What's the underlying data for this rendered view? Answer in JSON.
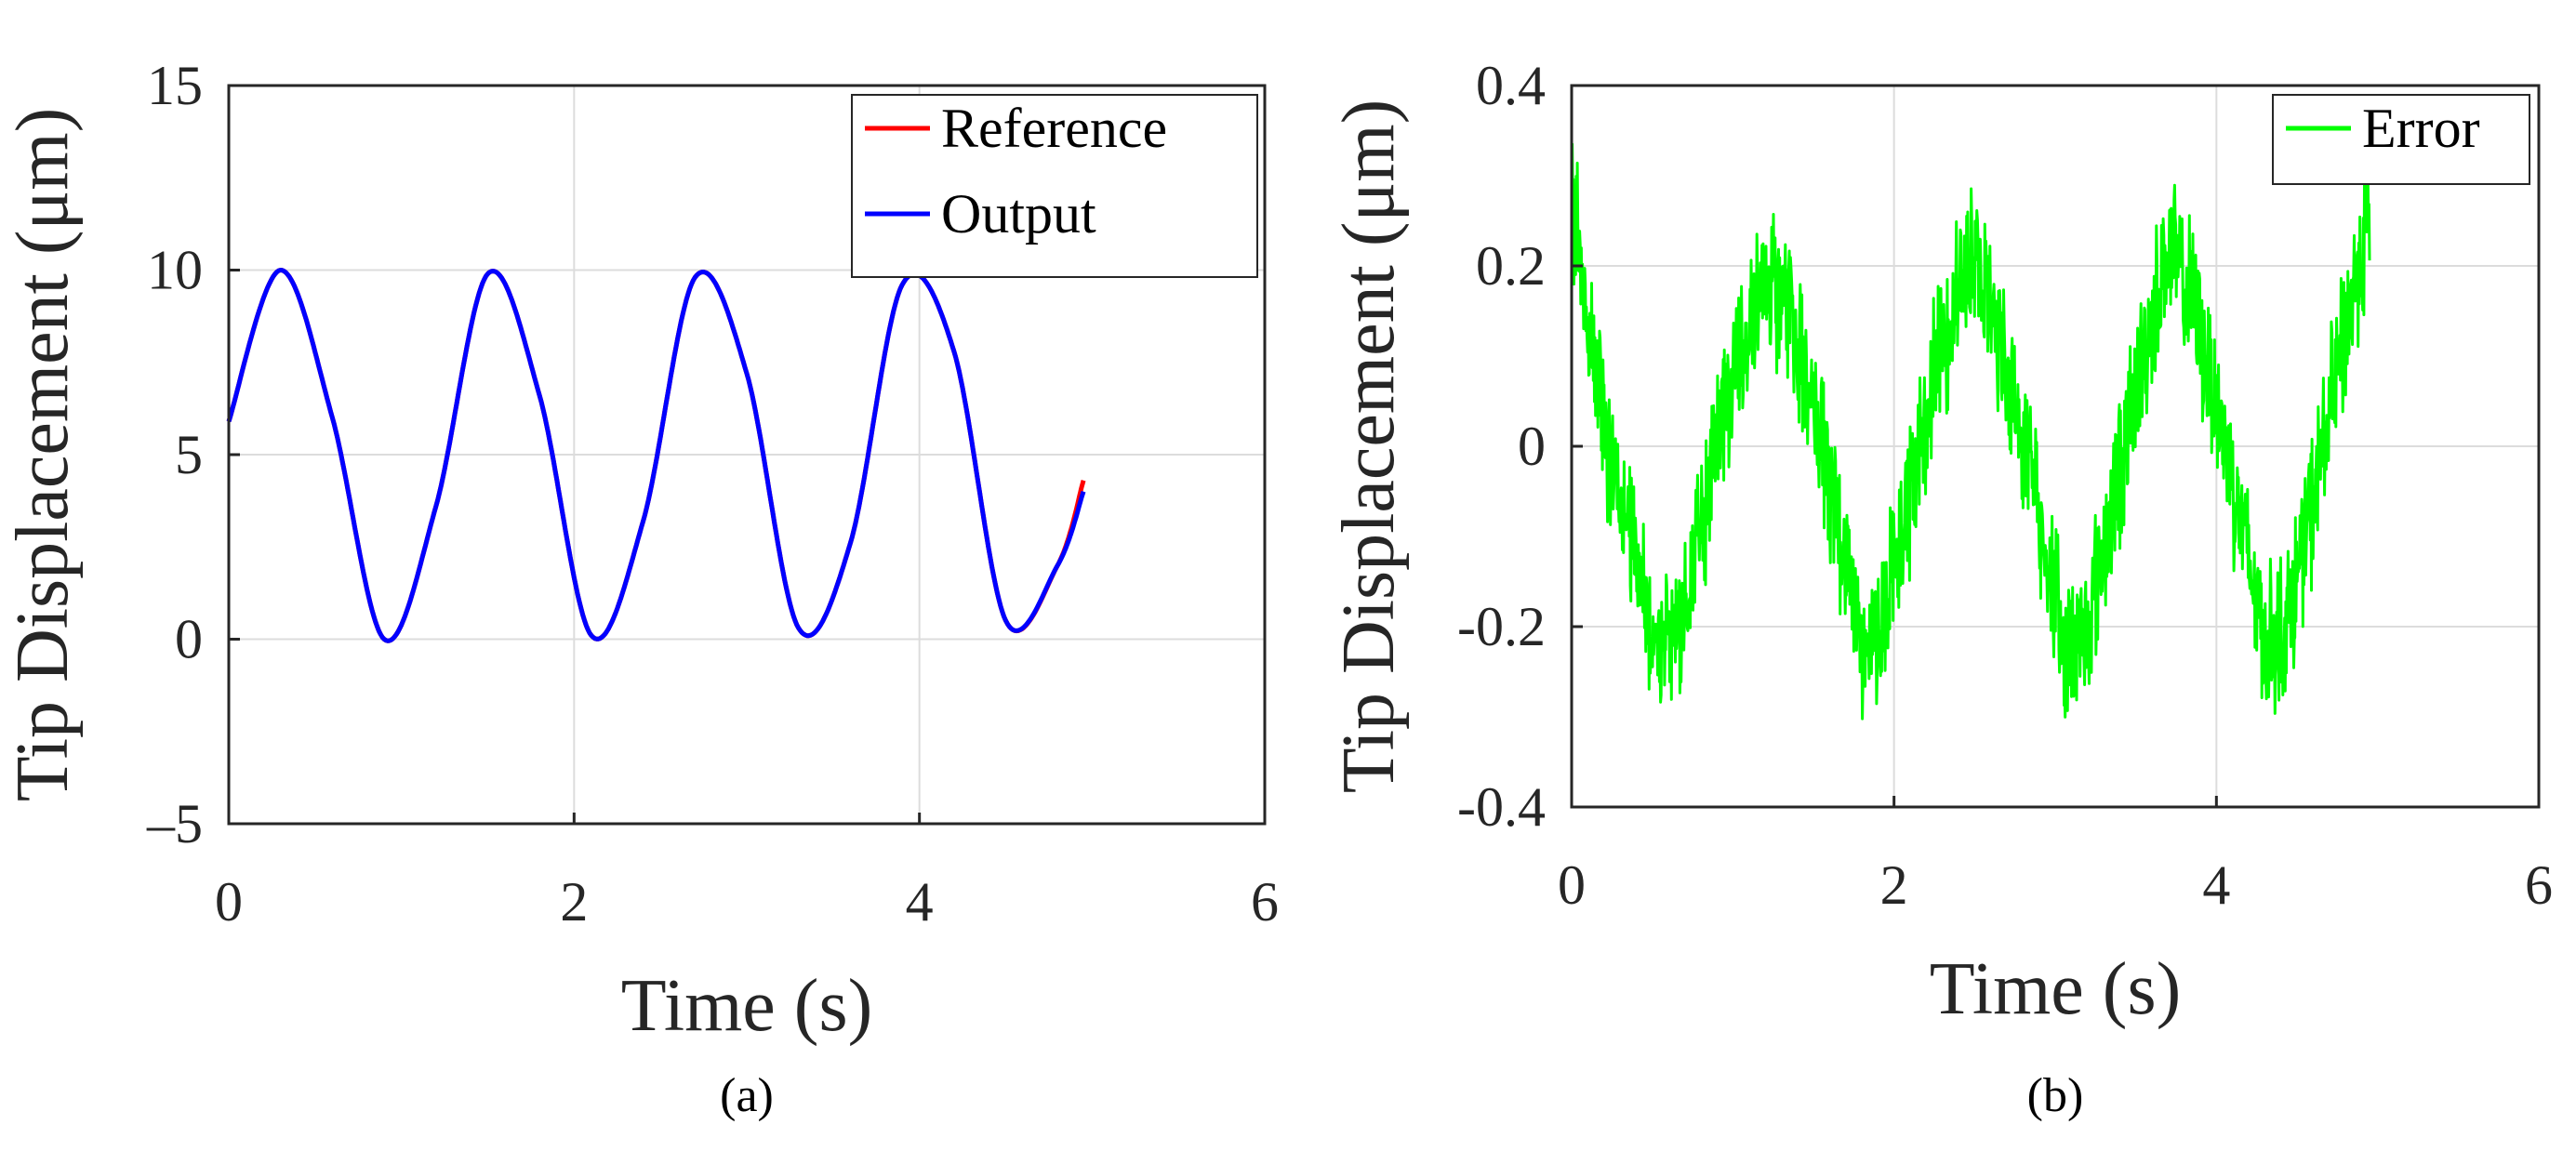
{
  "chart_data": [
    {
      "type": "line",
      "caption": "(a)",
      "xlabel": "Time (s)",
      "ylabel": "Tip Displacement (μm)",
      "xlim": [
        0,
        6
      ],
      "ylim": [
        -5,
        15
      ],
      "xticks": [
        0,
        2,
        4,
        6
      ],
      "xtick_labels": [
        "0",
        "2",
        "4",
        "6"
      ],
      "yticks": [
        -5,
        0,
        5,
        10,
        15
      ],
      "ytick_labels": [
        "–5",
        "0",
        "5",
        "10",
        "15"
      ],
      "grid": true,
      "legend_position": "top-right",
      "series": [
        {
          "name": "Reference",
          "color": "#ff0000",
          "x": [
            0,
            0.3,
            0.6,
            0.9,
            1.2,
            1.5,
            1.8,
            2.1,
            2.4,
            2.7,
            3.0,
            3.3,
            3.6,
            3.9,
            4.2,
            4.5,
            4.8,
            4.95
          ],
          "y": [
            5.9,
            10.0,
            6.0,
            0.0,
            3.6,
            9.9,
            6.6,
            0.1,
            3.2,
            9.8,
            7.2,
            0.3,
            2.6,
            9.6,
            7.8,
            0.5,
            2.0,
            4.3
          ]
        },
        {
          "name": "Output",
          "color": "#0000ff",
          "x": [
            0,
            0.3,
            0.6,
            0.9,
            1.2,
            1.5,
            1.8,
            2.1,
            2.4,
            2.7,
            3.0,
            3.3,
            3.6,
            3.9,
            4.2,
            4.5,
            4.8,
            4.95
          ],
          "y": [
            5.9,
            10.0,
            6.0,
            0.0,
            3.6,
            9.9,
            6.6,
            0.1,
            3.2,
            9.8,
            7.2,
            0.3,
            2.6,
            9.6,
            7.8,
            0.5,
            2.0,
            4.0
          ]
        }
      ]
    },
    {
      "type": "line",
      "caption": "(b)",
      "xlabel": "Time (s)",
      "ylabel": "Tip Displacement (μm)",
      "xlim": [
        0,
        6
      ],
      "ylim": [
        -0.4,
        0.4
      ],
      "xticks": [
        0,
        2,
        4,
        6
      ],
      "xtick_labels": [
        "0",
        "2",
        "4",
        "6"
      ],
      "yticks": [
        -0.4,
        -0.2,
        0,
        0.2,
        0.4
      ],
      "ytick_labels": [
        "-0.4",
        "-0.2",
        "0",
        "0.2",
        "0.4"
      ],
      "grid": true,
      "legend_position": "top-right",
      "series": [
        {
          "name": "Error",
          "color": "#00ff00",
          "x": [
            0,
            0.12,
            0.25,
            0.4,
            0.55,
            0.7,
            0.85,
            1.0,
            1.2,
            1.35,
            1.5,
            1.65,
            1.8,
            1.95,
            2.1,
            2.25,
            2.45,
            2.6,
            2.75,
            2.9,
            3.05,
            3.2,
            3.35,
            3.5,
            3.7,
            3.85,
            4.0,
            4.15,
            4.3,
            4.45,
            4.6,
            4.75,
            4.95
          ],
          "y": [
            0.28,
            0.12,
            -0.02,
            -0.13,
            -0.22,
            -0.18,
            -0.05,
            0.08,
            0.2,
            0.15,
            0.05,
            -0.08,
            -0.22,
            -0.18,
            -0.05,
            0.08,
            0.21,
            0.16,
            0.05,
            -0.08,
            -0.22,
            -0.2,
            -0.07,
            0.06,
            0.22,
            0.16,
            0.05,
            -0.08,
            -0.22,
            -0.19,
            -0.06,
            0.08,
            0.26
          ],
          "noise_amplitude": 0.09
        }
      ]
    }
  ]
}
